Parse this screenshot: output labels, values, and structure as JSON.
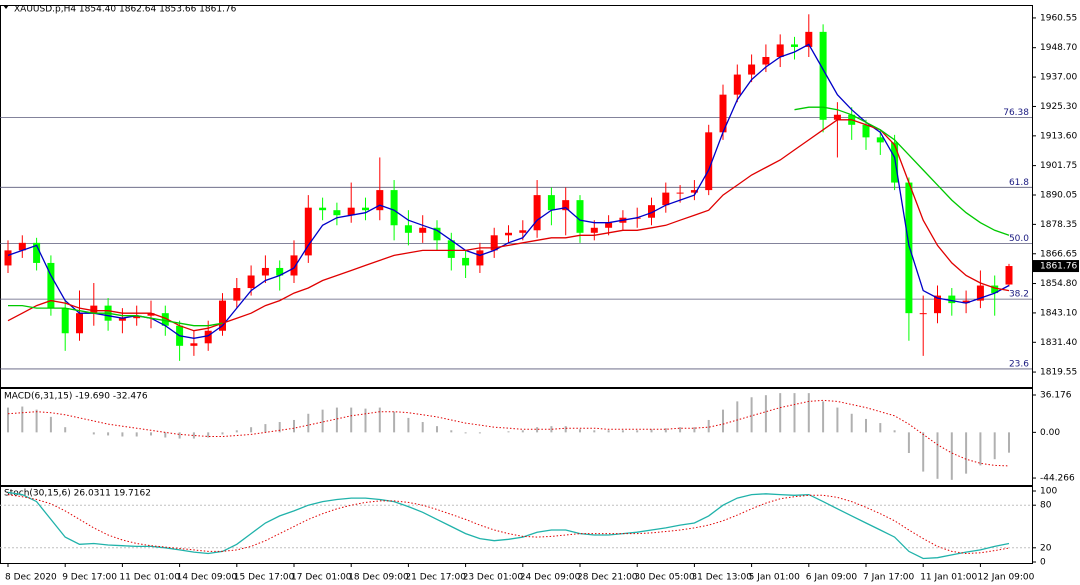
{
  "chart_data": [
    {
      "type": "candlestick",
      "title": "XAUUSD.p,H4  1854.40 1862.64 1853.66 1861.76",
      "categories": [
        "8 Dec 2020",
        null,
        null,
        null,
        "9 Dec 17:00",
        null,
        null,
        null,
        "11 Dec 01:00",
        null,
        null,
        null,
        "14 Dec 09:00",
        null,
        null,
        null,
        "15 Dec 17:00",
        null,
        null,
        null,
        "17 Dec 01:00",
        null,
        null,
        null,
        "18 Dec 09:00",
        null,
        null,
        null,
        "21 Dec 17:00",
        null,
        null,
        null,
        "23 Dec 01:00",
        null,
        null,
        null,
        "24 Dec 09:00",
        null,
        null,
        null,
        "28 Dec 21:00",
        null,
        null,
        null,
        "30 Dec 05:00",
        null,
        null,
        null,
        "31 Dec 13:00",
        null,
        null,
        null,
        "5 Jan 01:00",
        null,
        null,
        null,
        "6 Jan 09:00",
        null,
        null,
        null,
        "7 Jan 17:00",
        null,
        null,
        null,
        "11 Jan 01:00",
        null,
        null,
        null,
        "12 Jan 09:00",
        null,
        null
      ],
      "open": [
        1862,
        1868,
        1871,
        1863,
        1845,
        1835,
        1843,
        1846,
        1840,
        1841,
        1842,
        1843,
        1838,
        1830,
        1831,
        1836,
        1848,
        1853,
        1858,
        1861,
        1858,
        1866,
        1885,
        1884,
        1882,
        1885,
        1884,
        1892,
        1878,
        1875,
        1877,
        1872,
        1865,
        1862,
        1868,
        1874,
        1875,
        1876,
        1890,
        1884,
        1888,
        1875,
        1877,
        1879,
        1881,
        1881,
        1886,
        1891,
        1891,
        1892,
        1915,
        1930,
        1938,
        1942,
        1945,
        1950,
        1949,
        1955,
        1920,
        1922,
        1918,
        1913,
        1911,
        1895,
        1843,
        1843,
        1850,
        1847,
        1848,
        1854,
        1854.4
      ],
      "high": [
        1872,
        1874,
        1873,
        1866,
        1848,
        1852,
        1855,
        1849,
        1845,
        1846,
        1848,
        1846,
        1840,
        1836,
        1840,
        1851,
        1857,
        1862,
        1866,
        1864,
        1872,
        1890,
        1889,
        1887,
        1895,
        1889,
        1905,
        1896,
        1884,
        1882,
        1880,
        1875,
        1868,
        1871,
        1877,
        1878,
        1880,
        1896,
        1893,
        1893,
        1890,
        1880,
        1882,
        1884,
        1885,
        1889,
        1895,
        1894,
        1896,
        1918,
        1934,
        1942,
        1946,
        1950,
        1954,
        1953,
        1962,
        1958,
        1927,
        1925,
        1920,
        1916,
        1914,
        1897,
        1850,
        1854,
        1853,
        1852,
        1860,
        1858,
        1862.64
      ],
      "low": [
        1859,
        1865,
        1860,
        1842,
        1828,
        1832,
        1838,
        1836,
        1835,
        1838,
        1837,
        1834,
        1824,
        1826,
        1828,
        1834,
        1845,
        1850,
        1855,
        1852,
        1855,
        1863,
        1880,
        1878,
        1879,
        1880,
        1880,
        1872,
        1870,
        1871,
        1868,
        1860,
        1857,
        1859,
        1865,
        1871,
        1872,
        1873,
        1878,
        1874,
        1871,
        1872,
        1874,
        1876,
        1877,
        1878,
        1883,
        1887,
        1888,
        1890,
        1912,
        1927,
        1935,
        1939,
        1941,
        1944,
        1945,
        1915,
        1905,
        1912,
        1908,
        1906,
        1892,
        1832,
        1826,
        1839,
        1842,
        1843,
        1845,
        1842,
        1853.66
      ],
      "close": [
        1868,
        1871,
        1863,
        1845,
        1835,
        1843,
        1846,
        1840,
        1841,
        1842,
        1843,
        1838,
        1830,
        1831,
        1836,
        1848,
        1853,
        1858,
        1861,
        1858,
        1866,
        1885,
        1884,
        1882,
        1885,
        1884,
        1892,
        1878,
        1875,
        1877,
        1872,
        1865,
        1862,
        1868,
        1874,
        1875,
        1876,
        1890,
        1884,
        1888,
        1875,
        1877,
        1879,
        1881,
        1881,
        1886,
        1891,
        1891,
        1892,
        1915,
        1930,
        1938,
        1942,
        1945,
        1950,
        1949,
        1955,
        1920,
        1922,
        1918,
        1913,
        1911,
        1895,
        1843,
        1843,
        1850,
        1847,
        1848,
        1854,
        1851,
        1861.76
      ],
      "up_color": "#ff0000",
      "down_color": "#00ff00",
      "lines": [
        {
          "color": "#0000c8",
          "values": [
            1866,
            1868,
            1870,
            1858,
            1848,
            1843,
            1843,
            1842,
            1841,
            1842,
            1841,
            1838,
            1834,
            1833,
            1834,
            1838,
            1845,
            1852,
            1856,
            1858,
            1861,
            1870,
            1878,
            1881,
            1882,
            1883,
            1886,
            1884,
            1880,
            1878,
            1876,
            1872,
            1868,
            1866,
            1868,
            1871,
            1873,
            1880,
            1884,
            1885,
            1880,
            1879,
            1879,
            1880,
            1881,
            1883,
            1886,
            1888,
            1890,
            1900,
            1915,
            1928,
            1936,
            1941,
            1945,
            1947,
            1950,
            1940,
            1930,
            1924,
            1919,
            1915,
            1905,
            1870,
            1852,
            1849,
            1848,
            1847,
            1849,
            1851,
            1854
          ]
        },
        {
          "color": "#e00000",
          "values": [
            1840,
            1843,
            1846,
            1848,
            1847,
            1845,
            1844,
            1844,
            1843,
            1843,
            1843,
            1841,
            1838,
            1836,
            1837,
            1839,
            1841,
            1843,
            1846,
            1848,
            1851,
            1853,
            1856,
            1858,
            1860,
            1862,
            1864,
            1866,
            1867,
            1868,
            1868,
            1868,
            1868,
            1869,
            1869,
            1870,
            1871,
            1872,
            1873,
            1873,
            1874,
            1874,
            1875,
            1876,
            1876,
            1877,
            1878,
            1880,
            1882,
            1884,
            1890,
            1894,
            1898,
            1901,
            1904,
            1908,
            1912,
            1916,
            1920,
            1920,
            1918,
            1916,
            1910,
            1895,
            1880,
            1870,
            1863,
            1858,
            1855,
            1853,
            1852
          ]
        },
        {
          "color": "#00c800",
          "values": [
            1846,
            1846,
            1845,
            1845,
            1845,
            1844,
            1843,
            1843,
            1842,
            1842,
            1841,
            1840,
            1839,
            1838,
            1838,
            1839,
            null,
            null,
            null,
            null,
            null,
            null,
            null,
            null,
            null,
            null,
            null,
            null,
            null,
            null,
            null,
            null,
            null,
            null,
            null,
            null,
            null,
            null,
            null,
            null,
            null,
            null,
            null,
            null,
            null,
            null,
            null,
            null,
            null,
            null,
            null,
            null,
            null,
            null,
            null,
            1924,
            1925,
            1925,
            1924,
            1922,
            1919,
            1916,
            1912,
            1906,
            1900,
            1894,
            1888,
            1883,
            1879,
            1876,
            1874
          ]
        }
      ],
      "fibo_levels": [
        {
          "label": "76.38",
          "price": 1920.9
        },
        {
          "label": "61.8",
          "price": 1893.1
        },
        {
          "label": "50.0",
          "price": 1870.8
        },
        {
          "label": "38.2",
          "price": 1848.6
        },
        {
          "label": "23.6",
          "price": 1820.8
        }
      ],
      "last_price": 1861.76,
      "ylim": [
        1813.6,
        1965.7
      ],
      "yticks": [
        1960.55,
        {
          "value": 1948.7,
          "label": "1948.70"
        },
        {
          "value": 1937,
          "label": "1937.00"
        },
        {
          "value": 1925.3,
          "label": "1925.30"
        },
        {
          "value": 1913.6,
          "label": "1913.60"
        },
        1901.75,
        1890.05,
        1878.35,
        1866.65,
        {
          "value": 1854.8,
          "label": "1854.80"
        },
        {
          "value": 1843.1,
          "label": "1843.10"
        },
        {
          "value": 1831.4,
          "label": "1831.40"
        },
        1819.55
      ]
    },
    {
      "type": "macd",
      "title": "MACD(6,31,15) -19.690 -32.476",
      "histogram": {
        "color": "#b0b0b0",
        "values": [
          24,
          25,
          22,
          15,
          5,
          0,
          -2,
          -3,
          -4,
          -4,
          -3,
          -5,
          -6,
          -6,
          -5,
          -2,
          2,
          5,
          8,
          10,
          12,
          18,
          22,
          24,
          24,
          23,
          24,
          20,
          14,
          10,
          6,
          2,
          -1,
          -1,
          0,
          1,
          2,
          5,
          6,
          6,
          3,
          2,
          2,
          2,
          2,
          3,
          4,
          5,
          5,
          12,
          22,
          30,
          34,
          36,
          38,
          38,
          38,
          30,
          24,
          18,
          13,
          9,
          2,
          -20,
          -38,
          -45,
          -46,
          -40,
          -32,
          -26,
          -19.69
        ]
      },
      "signal": {
        "color": "#e00000",
        "values": [
          18,
          19,
          20,
          19,
          17,
          14,
          11,
          8,
          6,
          4,
          2,
          0,
          -2,
          -3,
          -4,
          -4,
          -3,
          -2,
          0,
          2,
          4,
          7,
          10,
          13,
          16,
          18,
          20,
          20,
          19,
          17,
          15,
          12,
          9,
          7,
          5,
          4,
          3,
          3,
          3,
          4,
          4,
          4,
          3,
          3,
          3,
          3,
          3,
          4,
          4,
          5,
          8,
          12,
          16,
          20,
          24,
          27,
          30,
          31,
          30,
          27,
          24,
          20,
          16,
          8,
          -2,
          -12,
          -20,
          -26,
          -30,
          -32,
          -32.476
        ]
      },
      "ylim": [
        -51,
        42
      ],
      "yticks": [
        36.176,
        {
          "value": 0,
          "label": "0.00"
        },
        -44.266
      ]
    },
    {
      "type": "stochastic",
      "title": "Stoch(30,15,6) 26.0311 19.7162",
      "main": {
        "color": "#20b2aa",
        "values": [
          98,
          95,
          85,
          60,
          35,
          25,
          26,
          24,
          23,
          22,
          22,
          20,
          17,
          14,
          12,
          15,
          25,
          40,
          55,
          65,
          72,
          80,
          85,
          88,
          90,
          90,
          88,
          85,
          78,
          70,
          60,
          50,
          40,
          33,
          30,
          32,
          35,
          42,
          45,
          45,
          40,
          38,
          38,
          40,
          42,
          45,
          48,
          52,
          55,
          65,
          80,
          90,
          95,
          96,
          95,
          94,
          95,
          85,
          75,
          65,
          55,
          45,
          35,
          15,
          5,
          6,
          10,
          14,
          17,
          22,
          26.0311
        ]
      },
      "signal": {
        "color": "#e00000",
        "values": [
          95,
          92,
          88,
          82,
          72,
          60,
          48,
          38,
          31,
          26,
          23,
          21,
          19,
          17,
          15,
          15,
          17,
          22,
          30,
          40,
          50,
          60,
          68,
          75,
          80,
          84,
          86,
          86,
          84,
          80,
          74,
          67,
          60,
          52,
          45,
          40,
          36,
          35,
          36,
          38,
          40,
          40,
          40,
          40,
          40,
          41,
          43,
          45,
          48,
          52,
          58,
          66,
          75,
          83,
          89,
          92,
          94,
          94,
          91,
          85,
          77,
          68,
          58,
          45,
          33,
          22,
          15,
          12,
          13,
          16,
          19.7162
        ]
      },
      "levels": [
        20,
        80
      ],
      "ylim": [
        0,
        100
      ],
      "yticks": [
        0,
        20,
        80,
        100
      ]
    }
  ]
}
